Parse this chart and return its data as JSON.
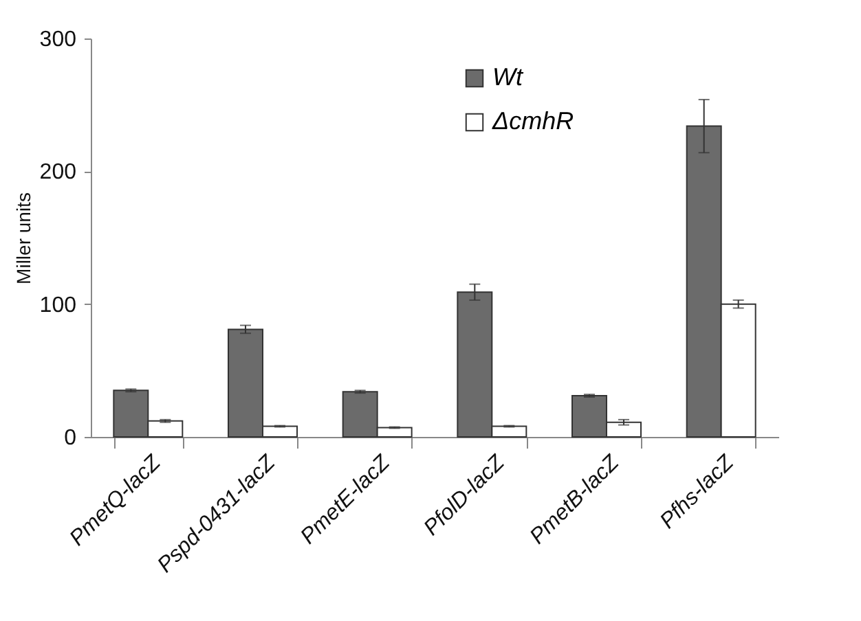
{
  "chart_data": {
    "type": "bar",
    "ylabel": "Miller units",
    "categories": [
      "PmetQ-lacZ",
      "Pspd-0431-lacZ",
      "PmetE-lacZ",
      "PfolD-lacZ",
      "PmetB-lacZ",
      "Pfhs-lacZ"
    ],
    "series": [
      {
        "name": "Wt",
        "color": "#6b6b6b",
        "values": [
          35,
          81,
          34,
          109,
          31,
          234
        ],
        "errors": [
          1,
          3,
          1,
          6,
          1,
          20
        ]
      },
      {
        "name": "ΔcmhR",
        "color": "#ffffff",
        "values": [
          12,
          8,
          7,
          8,
          11,
          100
        ],
        "errors": [
          1,
          0.5,
          0.5,
          0.5,
          2,
          3
        ]
      }
    ],
    "ylim": [
      0,
      300
    ],
    "yticks": [
      0,
      100,
      200,
      300
    ],
    "grid": false,
    "legend": "top right"
  }
}
